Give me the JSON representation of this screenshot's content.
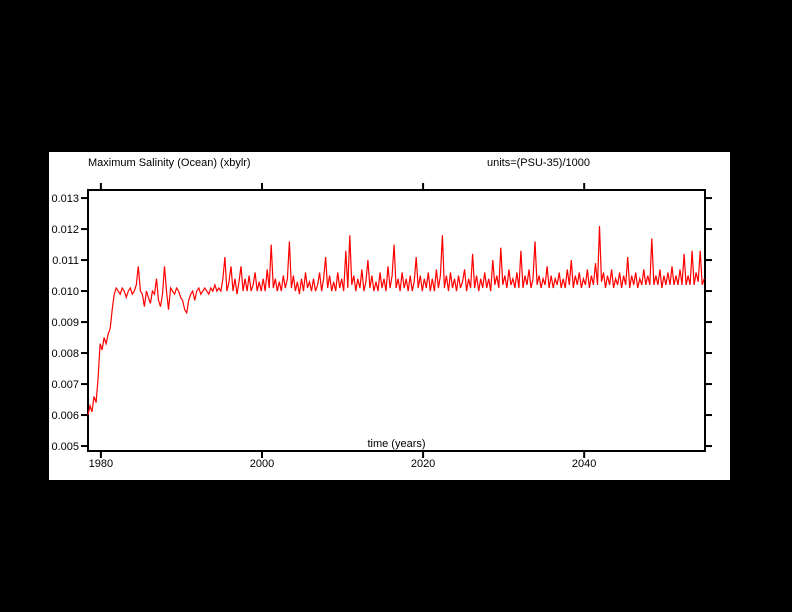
{
  "page": {
    "background_color": "#000000",
    "figure_background_color": "#ffffff",
    "text_color": "#000000"
  },
  "chart_data": {
    "type": "line",
    "title": "Maximum Salinity (Ocean) (xbylr)",
    "units_label": "units=(PSU-35)/1000",
    "xlabel": "time (years)",
    "ylabel": "",
    "legend": "none",
    "grid": false,
    "axis_color": "#000000",
    "line_color": "#ff0000",
    "x_ticks": [
      1980,
      2000,
      2020,
      2040
    ],
    "x_tick_labels": [
      "1980",
      "2000",
      "2020",
      "2040"
    ],
    "y_ticks": [
      0.005,
      0.006,
      0.007,
      0.008,
      0.009,
      0.01,
      0.011,
      0.012,
      0.013
    ],
    "y_tick_labels": [
      "0.005",
      "0.006",
      "0.007",
      "0.008",
      "0.009",
      "0.010",
      "0.011",
      "0.012",
      "0.013"
    ],
    "x_range": [
      1978.4,
      2055.0
    ],
    "y_range": [
      0.00484,
      0.01326
    ],
    "series": [
      {
        "name": "Maximum Salinity (Ocean)",
        "x_start": 1978.4,
        "x_step": 0.25,
        "values": [
          0.006,
          0.0063,
          0.0061,
          0.0066,
          0.0064,
          0.0072,
          0.0083,
          0.0081,
          0.0085,
          0.0083,
          0.0086,
          0.0088,
          0.0094,
          0.0099,
          0.0101,
          0.01,
          0.0099,
          0.0101,
          0.01,
          0.0098,
          0.01,
          0.0101,
          0.0099,
          0.01,
          0.0102,
          0.0108,
          0.01,
          0.0099,
          0.0095,
          0.01,
          0.0098,
          0.0096,
          0.01,
          0.0099,
          0.0104,
          0.0097,
          0.0095,
          0.0099,
          0.0108,
          0.01,
          0.0094,
          0.0101,
          0.01,
          0.0099,
          0.0101,
          0.01,
          0.0098,
          0.0097,
          0.0094,
          0.0093,
          0.0097,
          0.0099,
          0.01,
          0.0097,
          0.01,
          0.0101,
          0.0099,
          0.01,
          0.0101,
          0.01,
          0.0099,
          0.0101,
          0.01,
          0.0102,
          0.01,
          0.0101,
          0.01,
          0.0104,
          0.0111,
          0.01,
          0.0103,
          0.0108,
          0.01,
          0.0104,
          0.0099,
          0.0103,
          0.0108,
          0.01,
          0.0104,
          0.01,
          0.0105,
          0.01,
          0.0102,
          0.0106,
          0.01,
          0.0103,
          0.01,
          0.0104,
          0.01,
          0.0107,
          0.0101,
          0.0115,
          0.0101,
          0.0104,
          0.01,
          0.0103,
          0.01,
          0.0105,
          0.0101,
          0.0104,
          0.0116,
          0.0101,
          0.0105,
          0.01,
          0.0103,
          0.0099,
          0.0104,
          0.01,
          0.0106,
          0.0101,
          0.0103,
          0.01,
          0.0104,
          0.01,
          0.0102,
          0.0106,
          0.01,
          0.0104,
          0.0111,
          0.0101,
          0.0105,
          0.01,
          0.0103,
          0.01,
          0.0106,
          0.0101,
          0.0104,
          0.01,
          0.0113,
          0.0101,
          0.0118,
          0.0102,
          0.0105,
          0.01,
          0.0104,
          0.0101,
          0.0107,
          0.01,
          0.0103,
          0.011,
          0.0101,
          0.0105,
          0.01,
          0.0103,
          0.01,
          0.0106,
          0.0101,
          0.0104,
          0.01,
          0.0108,
          0.0101,
          0.0105,
          0.0115,
          0.0101,
          0.0104,
          0.01,
          0.0106,
          0.0101,
          0.0104,
          0.01,
          0.0105,
          0.01,
          0.0103,
          0.0111,
          0.0101,
          0.0105,
          0.01,
          0.0104,
          0.0101,
          0.0106,
          0.01,
          0.0104,
          0.01,
          0.0107,
          0.0101,
          0.0105,
          0.0118,
          0.0101,
          0.0105,
          0.01,
          0.0106,
          0.0101,
          0.0104,
          0.01,
          0.0105,
          0.0101,
          0.0103,
          0.0107,
          0.01,
          0.0104,
          0.0101,
          0.0112,
          0.0101,
          0.0105,
          0.01,
          0.0104,
          0.0101,
          0.0106,
          0.0101,
          0.0104,
          0.01,
          0.011,
          0.0102,
          0.0105,
          0.0101,
          0.0114,
          0.0102,
          0.0105,
          0.0101,
          0.0107,
          0.0102,
          0.0104,
          0.0101,
          0.0106,
          0.0101,
          0.0113,
          0.0101,
          0.0105,
          0.0102,
          0.0107,
          0.0101,
          0.0104,
          0.0116,
          0.0102,
          0.0105,
          0.0101,
          0.0104,
          0.0102,
          0.0108,
          0.0101,
          0.0105,
          0.0101,
          0.0104,
          0.0102,
          0.0106,
          0.0101,
          0.0104,
          0.0101,
          0.0107,
          0.0102,
          0.011,
          0.0101,
          0.0105,
          0.0102,
          0.0106,
          0.0101,
          0.0104,
          0.0102,
          0.0107,
          0.0101,
          0.0105,
          0.0102,
          0.0109,
          0.0102,
          0.0121,
          0.0103,
          0.0106,
          0.0101,
          0.0105,
          0.0102,
          0.0107,
          0.0101,
          0.0104,
          0.0102,
          0.0106,
          0.0101,
          0.0105,
          0.0102,
          0.0111,
          0.0101,
          0.0105,
          0.0102,
          0.0106,
          0.0101,
          0.0104,
          0.0102,
          0.0107,
          0.0102,
          0.0105,
          0.0102,
          0.0117,
          0.0102,
          0.0105,
          0.0102,
          0.0107,
          0.0101,
          0.0105,
          0.0102,
          0.0106,
          0.0102,
          0.0108,
          0.0102,
          0.0105,
          0.0102,
          0.0107,
          0.0102,
          0.0112,
          0.0102,
          0.0105,
          0.0102,
          0.0113,
          0.0102,
          0.0106,
          0.0103,
          0.0113,
          0.0102,
          0.0104
        ]
      }
    ]
  }
}
